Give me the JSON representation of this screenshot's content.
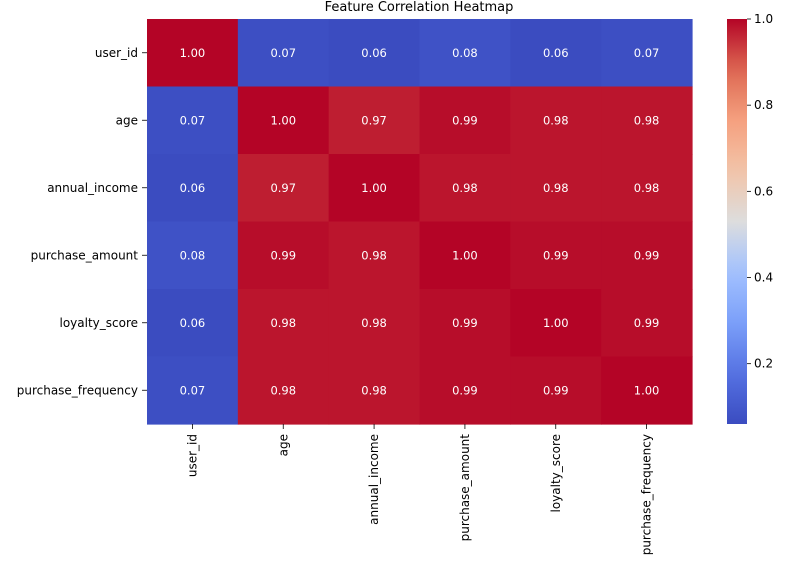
{
  "chart_data": {
    "type": "heatmap",
    "title": "Feature Correlation Heatmap",
    "rows": [
      "user_id",
      "age",
      "annual_income",
      "purchase_amount",
      "loyalty_score",
      "purchase_frequency"
    ],
    "columns": [
      "user_id",
      "age",
      "annual_income",
      "purchase_amount",
      "loyalty_score",
      "purchase_frequency"
    ],
    "values": [
      [
        1.0,
        0.07,
        0.06,
        0.08,
        0.06,
        0.07
      ],
      [
        0.07,
        1.0,
        0.97,
        0.99,
        0.98,
        0.98
      ],
      [
        0.06,
        0.97,
        1.0,
        0.98,
        0.98,
        0.98
      ],
      [
        0.08,
        0.99,
        0.98,
        1.0,
        0.99,
        0.99
      ],
      [
        0.06,
        0.98,
        0.98,
        0.99,
        1.0,
        0.99
      ],
      [
        0.07,
        0.98,
        0.98,
        0.99,
        0.99,
        1.0
      ]
    ],
    "annotation_format": "0.00",
    "colormap": "coolwarm",
    "color_range": [
      0.06,
      1.0
    ],
    "colorbar": {
      "ticks": [
        0.2,
        0.4,
        0.6,
        0.8,
        1.0
      ],
      "tick_labels": [
        "0.2",
        "0.4",
        "0.6",
        "0.8",
        "1.0"
      ],
      "placement": "right"
    },
    "colors": {
      "low": "#3b4cc0",
      "mid": "#dddddd",
      "high": "#b40426"
    }
  }
}
